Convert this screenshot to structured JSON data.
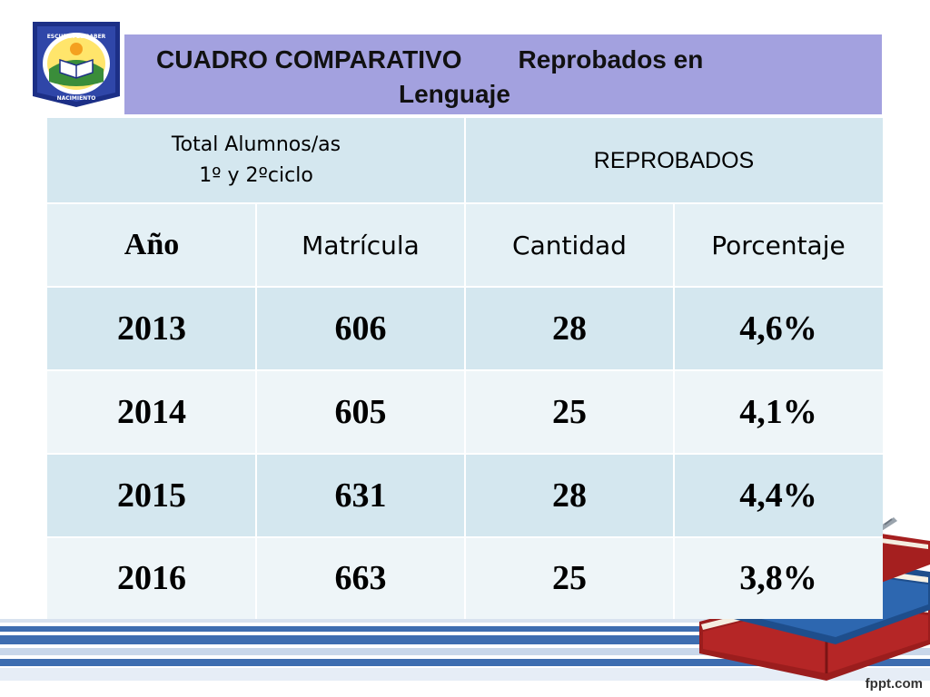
{
  "logo": {
    "school_name_top": "ESCUELA EL SABER",
    "school_name_bottom": "NACIMIENTO"
  },
  "title": {
    "line1_a": "CUADRO  COMPARATIVO",
    "line1_b": "Reprobados en",
    "line2": "Lenguaje"
  },
  "table": {
    "group_header_left_line1": "Total Alumnos/as",
    "group_header_left_line2": "1º y 2ºciclo",
    "group_header_right": "REPROBADOS",
    "columns": [
      "Año",
      "Matrícula",
      "Cantidad",
      "Porcentaje"
    ],
    "rows": [
      [
        "2013",
        "606",
        "28",
        "4,6%"
      ],
      [
        "2014",
        "605",
        "25",
        "4,1%"
      ],
      [
        "2015",
        "631",
        "28",
        "4,4%"
      ],
      [
        "2016",
        "663",
        "25",
        "3,8%"
      ]
    ]
  },
  "footer": {
    "watermark": "fppt.com"
  },
  "colors": {
    "title_bg": "#a3a1df",
    "stripe_blue": "#3e6db0",
    "stripe_light": "#c9d7ea",
    "row_dark": "#d4e7ef",
    "row_light": "#eef5f8"
  }
}
